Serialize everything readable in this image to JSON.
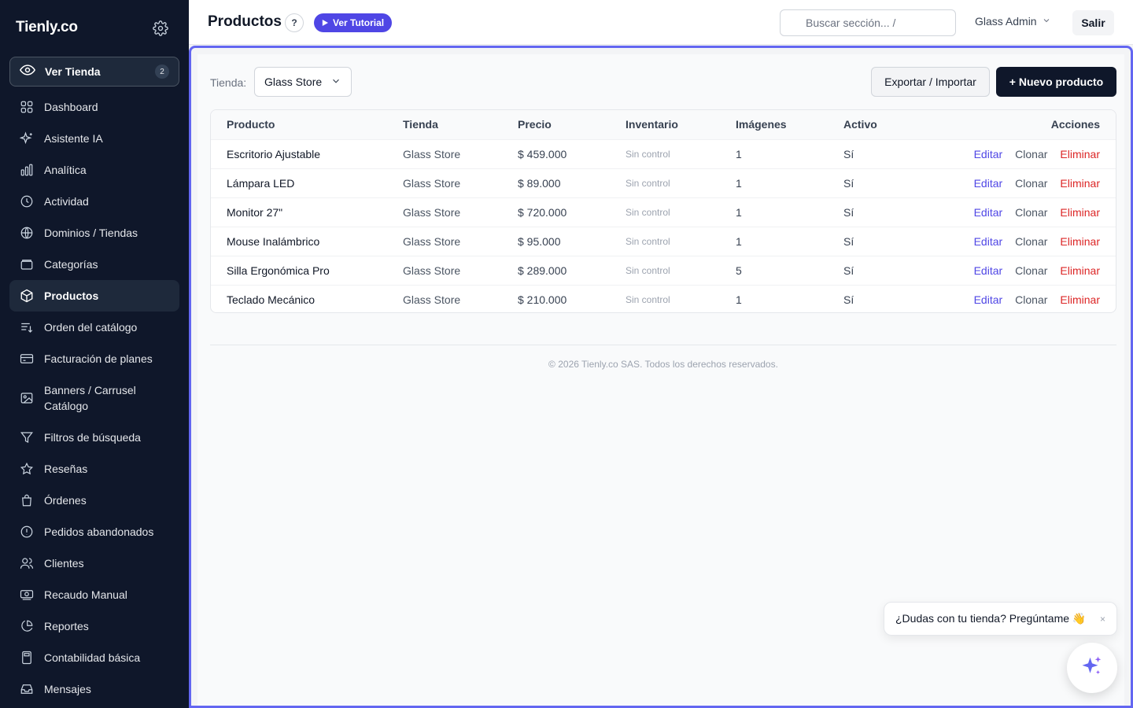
{
  "sidebar": {
    "brand": "Tienly.co",
    "ver_tienda": {
      "label": "Ver Tienda",
      "count": "2"
    },
    "items": [
      {
        "label": "Dashboard",
        "icon": "dashboard-icon"
      },
      {
        "label": "Asistente IA",
        "icon": "sparkles-icon"
      },
      {
        "label": "Analítica",
        "icon": "bar-chart-icon"
      },
      {
        "label": "Actividad",
        "icon": "clock-icon"
      },
      {
        "label": "Dominios / Tiendas",
        "icon": "globe-icon"
      },
      {
        "label": "Categorías",
        "icon": "folder-icon"
      },
      {
        "label": "Productos",
        "icon": "box-icon",
        "active": true
      },
      {
        "label": "Orden del catálogo",
        "icon": "sort-list-icon"
      },
      {
        "label": "Facturación de planes",
        "icon": "credit-card-icon"
      },
      {
        "label": "Banners / Carrusel Catálogo",
        "icon": "image-icon"
      },
      {
        "label": "Filtros de búsqueda",
        "icon": "filter-icon"
      },
      {
        "label": "Reseñas",
        "icon": "star-icon"
      },
      {
        "label": "Órdenes",
        "icon": "shopping-bag-icon"
      },
      {
        "label": "Pedidos abandonados",
        "icon": "alert-circle-icon"
      },
      {
        "label": "Clientes",
        "icon": "users-icon"
      },
      {
        "label": "Recaudo Manual",
        "icon": "cash-icon"
      },
      {
        "label": "Reportes",
        "icon": "pie-chart-icon"
      },
      {
        "label": "Contabilidad básica",
        "icon": "calculator-icon"
      },
      {
        "label": "Mensajes",
        "icon": "inbox-icon"
      }
    ]
  },
  "topbar": {
    "title": "Productos",
    "help": "?",
    "tutorial": "Ver Tutorial",
    "search_placeholder": "Buscar sección...  /",
    "user": "Glass Admin",
    "logout": "Salir"
  },
  "toolbar": {
    "store_label": "Tienda:",
    "store_value": "Glass Store",
    "export_label": "Exportar / Importar",
    "new_label": "+ Nuevo producto"
  },
  "table": {
    "headers": [
      "Producto",
      "Tienda",
      "Precio",
      "Inventario",
      "Imágenes",
      "Activo",
      "Acciones"
    ],
    "rows": [
      {
        "producto": "Escritorio Ajustable",
        "tienda": "Glass Store",
        "precio": "$ 459.000",
        "inventario": "Sin control",
        "imagenes": "1",
        "activo": "Sí"
      },
      {
        "producto": "Lámpara LED",
        "tienda": "Glass Store",
        "precio": "$ 89.000",
        "inventario": "Sin control",
        "imagenes": "1",
        "activo": "Sí"
      },
      {
        "producto": "Monitor 27\"",
        "tienda": "Glass Store",
        "precio": "$ 720.000",
        "inventario": "Sin control",
        "imagenes": "1",
        "activo": "Sí"
      },
      {
        "producto": "Mouse Inalámbrico",
        "tienda": "Glass Store",
        "precio": "$ 95.000",
        "inventario": "Sin control",
        "imagenes": "1",
        "activo": "Sí"
      },
      {
        "producto": "Silla Ergonómica Pro",
        "tienda": "Glass Store",
        "precio": "$ 289.000",
        "inventario": "Sin control",
        "imagenes": "5",
        "activo": "Sí"
      },
      {
        "producto": "Teclado Mecánico",
        "tienda": "Glass Store",
        "precio": "$ 210.000",
        "inventario": "Sin control",
        "imagenes": "1",
        "activo": "Sí"
      }
    ],
    "actions": {
      "edit": "Editar",
      "clone": "Clonar",
      "delete": "Eliminar"
    }
  },
  "footer": "© 2026 Tienly.co SAS. Todos los derechos reservados.",
  "chat": {
    "prompt": "¿Dudas con tu tienda? Pregúntame 👋",
    "close": "×"
  },
  "colors": {
    "sidebar_bg": "#0f172a",
    "accent": "#4f46e5",
    "danger": "#dc2626",
    "frame": "#6366f1"
  }
}
